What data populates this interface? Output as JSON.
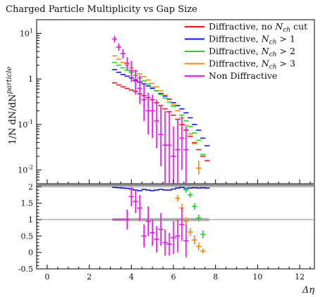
{
  "chart_data": {
    "type": "scatter",
    "title": "Charged Particle Multiplicity vs Gap Size",
    "xlabel": "Δη",
    "ylabel_main": "1/N dN/dN^particle",
    "xlim": [
      -0.5,
      12.7
    ],
    "x_ticks": [
      "0",
      "2",
      "4",
      "6",
      "8",
      "10",
      "12"
    ],
    "main": {
      "log_y": true,
      "ylim": [
        0.005,
        20
      ],
      "y_tick_labels": [
        "10^-2",
        "10^-1",
        "1",
        "10^1"
      ]
    },
    "ratio": {
      "ylim": [
        -0.5,
        2.05
      ],
      "y_ticks": [
        "-0.5",
        "0",
        "0.5",
        "1",
        "1.5",
        "2"
      ],
      "band": {
        "x_start": 3.1,
        "x_end": 7.7,
        "lo": 0.95,
        "hi": 1.05
      }
    },
    "legend_position": "top-right",
    "series": [
      {
        "name": "Diffractive, no N_ch cut",
        "color": "#ee1111",
        "points": [
          {
            "x": 3.2,
            "y": 0.82
          },
          {
            "x": 3.4,
            "y": 0.74
          },
          {
            "x": 3.6,
            "y": 0.67
          },
          {
            "x": 3.8,
            "y": 0.62
          },
          {
            "x": 4.0,
            "y": 0.57
          },
          {
            "x": 4.2,
            "y": 0.53
          },
          {
            "x": 4.4,
            "y": 0.47
          },
          {
            "x": 4.6,
            "y": 0.43
          },
          {
            "x": 4.8,
            "y": 0.39
          },
          {
            "x": 5.0,
            "y": 0.35
          },
          {
            "x": 5.2,
            "y": 0.3
          },
          {
            "x": 5.4,
            "y": 0.26
          },
          {
            "x": 5.6,
            "y": 0.22
          },
          {
            "x": 5.8,
            "y": 0.19
          },
          {
            "x": 6.0,
            "y": 0.16
          },
          {
            "x": 6.2,
            "y": 0.13
          },
          {
            "x": 6.4,
            "y": 0.1
          },
          {
            "x": 6.6,
            "y": 0.075
          },
          {
            "x": 6.8,
            "y": 0.055
          },
          {
            "x": 7.0,
            "y": 0.04
          },
          {
            "x": 7.2,
            "y": 0.028
          },
          {
            "x": 7.4,
            "y": 0.02
          },
          {
            "x": 7.6,
            "y": 0.016
          }
        ],
        "ratio": []
      },
      {
        "name": "Diffractive, N_ch > 1",
        "color": "#1111ee",
        "points": [
          {
            "x": 3.2,
            "y": 1.6
          },
          {
            "x": 3.4,
            "y": 1.4
          },
          {
            "x": 3.6,
            "y": 1.25
          },
          {
            "x": 3.8,
            "y": 1.15
          },
          {
            "x": 4.0,
            "y": 1.05
          },
          {
            "x": 4.2,
            "y": 0.95
          },
          {
            "x": 4.4,
            "y": 0.85
          },
          {
            "x": 4.6,
            "y": 0.78
          },
          {
            "x": 4.8,
            "y": 0.7
          },
          {
            "x": 5.0,
            "y": 0.62
          },
          {
            "x": 5.2,
            "y": 0.55
          },
          {
            "x": 5.4,
            "y": 0.48
          },
          {
            "x": 5.6,
            "y": 0.42
          },
          {
            "x": 5.8,
            "y": 0.36
          },
          {
            "x": 6.0,
            "y": 0.3
          },
          {
            "x": 6.2,
            "y": 0.26
          },
          {
            "x": 6.4,
            "y": 0.22
          },
          {
            "x": 6.6,
            "y": 0.18
          },
          {
            "x": 6.8,
            "y": 0.14
          },
          {
            "x": 7.0,
            "y": 0.1
          },
          {
            "x": 7.2,
            "y": 0.075
          },
          {
            "x": 7.4,
            "y": 0.05
          },
          {
            "x": 7.6,
            "y": 0.034
          }
        ],
        "ratio": [
          {
            "x": 3.2,
            "y": 1.98
          },
          {
            "x": 3.4,
            "y": 1.97
          },
          {
            "x": 3.6,
            "y": 1.96
          },
          {
            "x": 3.8,
            "y": 1.95
          },
          {
            "x": 4.0,
            "y": 1.93
          },
          {
            "x": 4.2,
            "y": 1.9
          },
          {
            "x": 4.4,
            "y": 1.88
          },
          {
            "x": 4.6,
            "y": 1.92
          },
          {
            "x": 4.8,
            "y": 1.9
          },
          {
            "x": 5.0,
            "y": 1.88
          },
          {
            "x": 5.2,
            "y": 1.9
          },
          {
            "x": 5.4,
            "y": 1.92
          },
          {
            "x": 5.6,
            "y": 1.9
          },
          {
            "x": 5.8,
            "y": 1.9
          },
          {
            "x": 6.0,
            "y": 1.93
          },
          {
            "x": 6.2,
            "y": 1.96
          },
          {
            "x": 6.4,
            "y": 1.98
          },
          {
            "x": 6.6,
            "y": 1.95
          },
          {
            "x": 6.8,
            "y": 1.96
          },
          {
            "x": 7.0,
            "y": 1.97
          },
          {
            "x": 7.2,
            "y": 1.96
          },
          {
            "x": 7.4,
            "y": 1.97
          },
          {
            "x": 7.6,
            "y": 1.96
          }
        ]
      },
      {
        "name": "Diffractive, N_ch > 2",
        "color": "#11dd11",
        "points": [
          {
            "x": 3.2,
            "y": 2.3
          },
          {
            "x": 3.4,
            "y": 2.0
          },
          {
            "x": 3.6,
            "y": 1.75
          },
          {
            "x": 3.8,
            "y": 1.55
          },
          {
            "x": 4.0,
            "y": 1.38
          },
          {
            "x": 4.2,
            "y": 1.2
          },
          {
            "x": 4.4,
            "y": 1.05
          },
          {
            "x": 4.6,
            "y": 0.9
          },
          {
            "x": 4.8,
            "y": 0.77
          },
          {
            "x": 5.0,
            "y": 0.65
          },
          {
            "x": 5.2,
            "y": 0.55
          },
          {
            "x": 5.4,
            "y": 0.46
          },
          {
            "x": 5.6,
            "y": 0.38
          },
          {
            "x": 5.8,
            "y": 0.31
          },
          {
            "x": 6.0,
            "y": 0.25
          },
          {
            "x": 6.2,
            "y": 0.2
          },
          {
            "x": 6.4,
            "y": 0.16
          },
          {
            "x": 6.6,
            "y": 0.12
          },
          {
            "x": 6.8,
            "y": 0.09
          },
          {
            "x": 7.0,
            "y": 0.065
          },
          {
            "x": 7.2,
            "y": 0.045
          },
          {
            "x": 7.4,
            "y": 0.022
          }
        ],
        "ratio": [
          {
            "x": 6.6,
            "y": 1.9,
            "err": 0.08
          },
          {
            "x": 6.8,
            "y": 1.75,
            "err": 0.08
          },
          {
            "x": 7.0,
            "y": 1.4,
            "err": 0.1
          },
          {
            "x": 7.2,
            "y": 1.05,
            "err": 0.1
          },
          {
            "x": 7.4,
            "y": 0.55,
            "err": 0.12
          }
        ]
      },
      {
        "name": "Diffractive, N_ch > 3",
        "color": "#ff8800",
        "points": [
          {
            "x": 3.2,
            "y": 3.2
          },
          {
            "x": 3.4,
            "y": 2.7
          },
          {
            "x": 3.6,
            "y": 2.3
          },
          {
            "x": 3.8,
            "y": 2.0
          },
          {
            "x": 4.0,
            "y": 1.75
          },
          {
            "x": 4.2,
            "y": 1.5
          },
          {
            "x": 4.4,
            "y": 1.3
          },
          {
            "x": 4.6,
            "y": 1.12
          },
          {
            "x": 4.8,
            "y": 0.95
          },
          {
            "x": 5.0,
            "y": 0.8
          },
          {
            "x": 5.2,
            "y": 0.67
          },
          {
            "x": 5.4,
            "y": 0.55
          },
          {
            "x": 5.6,
            "y": 0.44
          },
          {
            "x": 5.8,
            "y": 0.35
          },
          {
            "x": 6.0,
            "y": 0.27
          },
          {
            "x": 6.2,
            "y": 0.2
          },
          {
            "x": 6.4,
            "y": 0.14
          },
          {
            "x": 6.6,
            "y": 0.095
          },
          {
            "x": 6.8,
            "y": 0.062
          },
          {
            "x": 7.0,
            "y": 0.038
          },
          {
            "x": 7.2,
            "y": 0.011,
            "lo": 0.008,
            "hi": 0.016
          }
        ],
        "ratio": [
          {
            "x": 6.2,
            "y": 1.65,
            "err": 0.1
          },
          {
            "x": 6.4,
            "y": 1.35,
            "err": 0.12
          },
          {
            "x": 6.6,
            "y": 0.95,
            "err": 0.12
          },
          {
            "x": 6.8,
            "y": 0.62,
            "err": 0.12
          },
          {
            "x": 7.0,
            "y": 0.38,
            "err": 0.14
          },
          {
            "x": 7.2,
            "y": 0.18,
            "err": 0.12
          },
          {
            "x": 7.4,
            "y": 0.04,
            "err": 0.08
          }
        ]
      },
      {
        "name": "Non Diffractive",
        "color": "#ee11ee",
        "points": [
          {
            "x": 3.2,
            "y": 7.5,
            "lo": 6.3,
            "hi": 8.8
          },
          {
            "x": 3.4,
            "y": 5.0,
            "lo": 4.1,
            "hi": 6.0
          },
          {
            "x": 3.6,
            "y": 3.6,
            "lo": 2.8,
            "hi": 4.5
          },
          {
            "x": 3.8,
            "y": 2.2,
            "lo": 1.6,
            "hi": 3.0
          },
          {
            "x": 4.0,
            "y": 1.5,
            "lo": 0.85,
            "hi": 2.5
          },
          {
            "x": 4.2,
            "y": 0.9,
            "lo": 0.45,
            "hi": 1.6
          },
          {
            "x": 4.4,
            "y": 0.62,
            "lo": 0.28,
            "hi": 1.2
          },
          {
            "x": 4.6,
            "y": 0.35,
            "lo": 0.12,
            "hi": 0.75
          },
          {
            "x": 4.8,
            "y": 0.2,
            "lo": 0.06,
            "hi": 0.5
          },
          {
            "x": 5.0,
            "y": 0.2,
            "lo": 0.05,
            "hi": 0.45
          },
          {
            "x": 5.2,
            "y": 0.12,
            "lo": 0.03,
            "hi": 0.35
          },
          {
            "x": 5.4,
            "y": 0.06,
            "lo": 0.012,
            "hi": 0.25
          },
          {
            "x": 5.6,
            "y": 0.035,
            "lo": 0.005,
            "hi": 0.2
          },
          {
            "x": 5.8,
            "y": 0.035,
            "lo": 0.005,
            "hi": 0.2
          },
          {
            "x": 6.0,
            "y": 0.02,
            "lo": 0.005,
            "hi": 0.09
          },
          {
            "x": 6.2,
            "y": 0.028,
            "lo": 0.005,
            "hi": 0.13
          },
          {
            "x": 6.4,
            "y": 0.05,
            "lo": 0.01,
            "hi": 0.15
          },
          {
            "x": 6.6,
            "y": 0.028,
            "lo": 0.005,
            "hi": 0.09
          }
        ],
        "ratio": [
          {
            "x": 3.2,
            "y": 1.0
          },
          {
            "x": 3.4,
            "y": 1.0
          },
          {
            "x": 3.6,
            "y": 1.0
          },
          {
            "x": 3.8,
            "y": 1.0,
            "err": 0.3
          },
          {
            "x": 4.0,
            "y": 1.7,
            "err": 0.3
          },
          {
            "x": 4.2,
            "y": 1.55,
            "err": 0.35
          },
          {
            "x": 4.4,
            "y": 1.35,
            "err": 0.4
          },
          {
            "x": 4.6,
            "y": 0.5,
            "err": 0.35
          },
          {
            "x": 4.8,
            "y": 0.95,
            "err": 0.45
          },
          {
            "x": 5.0,
            "y": 0.6,
            "err": 0.4
          },
          {
            "x": 5.2,
            "y": 0.4,
            "err": 0.4
          },
          {
            "x": 5.4,
            "y": 0.7,
            "err": 0.5
          },
          {
            "x": 5.6,
            "y": 0.3,
            "err": 0.4
          },
          {
            "x": 5.8,
            "y": 0.25,
            "err": 0.35
          },
          {
            "x": 6.0,
            "y": 0.45,
            "err": 0.5
          },
          {
            "x": 6.2,
            "y": 0.5,
            "err": 0.5
          },
          {
            "x": 6.4,
            "y": 0.85,
            "err": 0.5
          },
          {
            "x": 6.6,
            "y": 0.35,
            "err": 0.5
          }
        ]
      }
    ]
  }
}
